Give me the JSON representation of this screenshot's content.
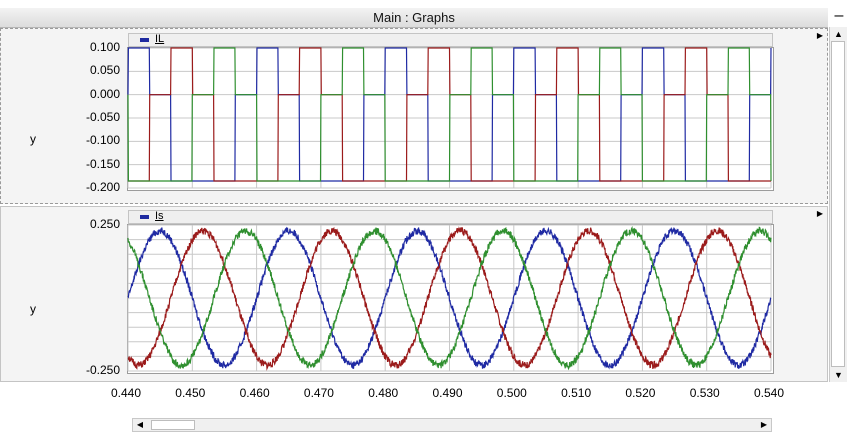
{
  "window": {
    "title": "Main : Graphs",
    "minimize_label": "–"
  },
  "panels": [
    {
      "legend": "IL",
      "ylabel": "y",
      "yticks": [
        "0.100",
        "0.050",
        "0.000",
        "-0.050",
        "-0.100",
        "-0.150",
        "-0.200"
      ]
    },
    {
      "legend": "Is",
      "ylabel": "y",
      "yticks": [
        "0.250",
        "-0.250"
      ]
    }
  ],
  "xticks": [
    "0.440",
    "0.450",
    "0.460",
    "0.470",
    "0.480",
    "0.490",
    "0.500",
    "0.510",
    "0.520",
    "0.530",
    "0.540"
  ],
  "chart_data": [
    {
      "type": "line",
      "title": "",
      "legend": [
        "IL"
      ],
      "xlabel": "",
      "ylabel": "y",
      "xlim": [
        0.44,
        0.54
      ],
      "ylim": [
        -0.2,
        0.1
      ],
      "grid": true,
      "waveform": "three-phase six-step line current",
      "period": 0.02,
      "high_level": 0.1,
      "low_level": -0.185,
      "series": [
        {
          "name": "",
          "color": "#1f2aa3",
          "phase_deg": 0
        },
        {
          "name": "",
          "color": "#9b1b1b",
          "phase_deg": 120
        },
        {
          "name": "",
          "color": "#2f8f2f",
          "phase_deg": 240
        }
      ]
    },
    {
      "type": "line",
      "title": "",
      "legend": [
        "Is"
      ],
      "xlabel": "",
      "ylabel": "y",
      "xlim": [
        0.44,
        0.54
      ],
      "ylim": [
        -0.25,
        0.25
      ],
      "grid": true,
      "waveform": "three-phase sinusoidal source current",
      "period": 0.02,
      "amplitude": 0.23,
      "series": [
        {
          "name": "",
          "color": "#1f2aa3",
          "phase_deg": 0
        },
        {
          "name": "",
          "color": "#9b1b1b",
          "phase_deg": 120
        },
        {
          "name": "",
          "color": "#2f8f2f",
          "phase_deg": 240
        }
      ]
    }
  ]
}
